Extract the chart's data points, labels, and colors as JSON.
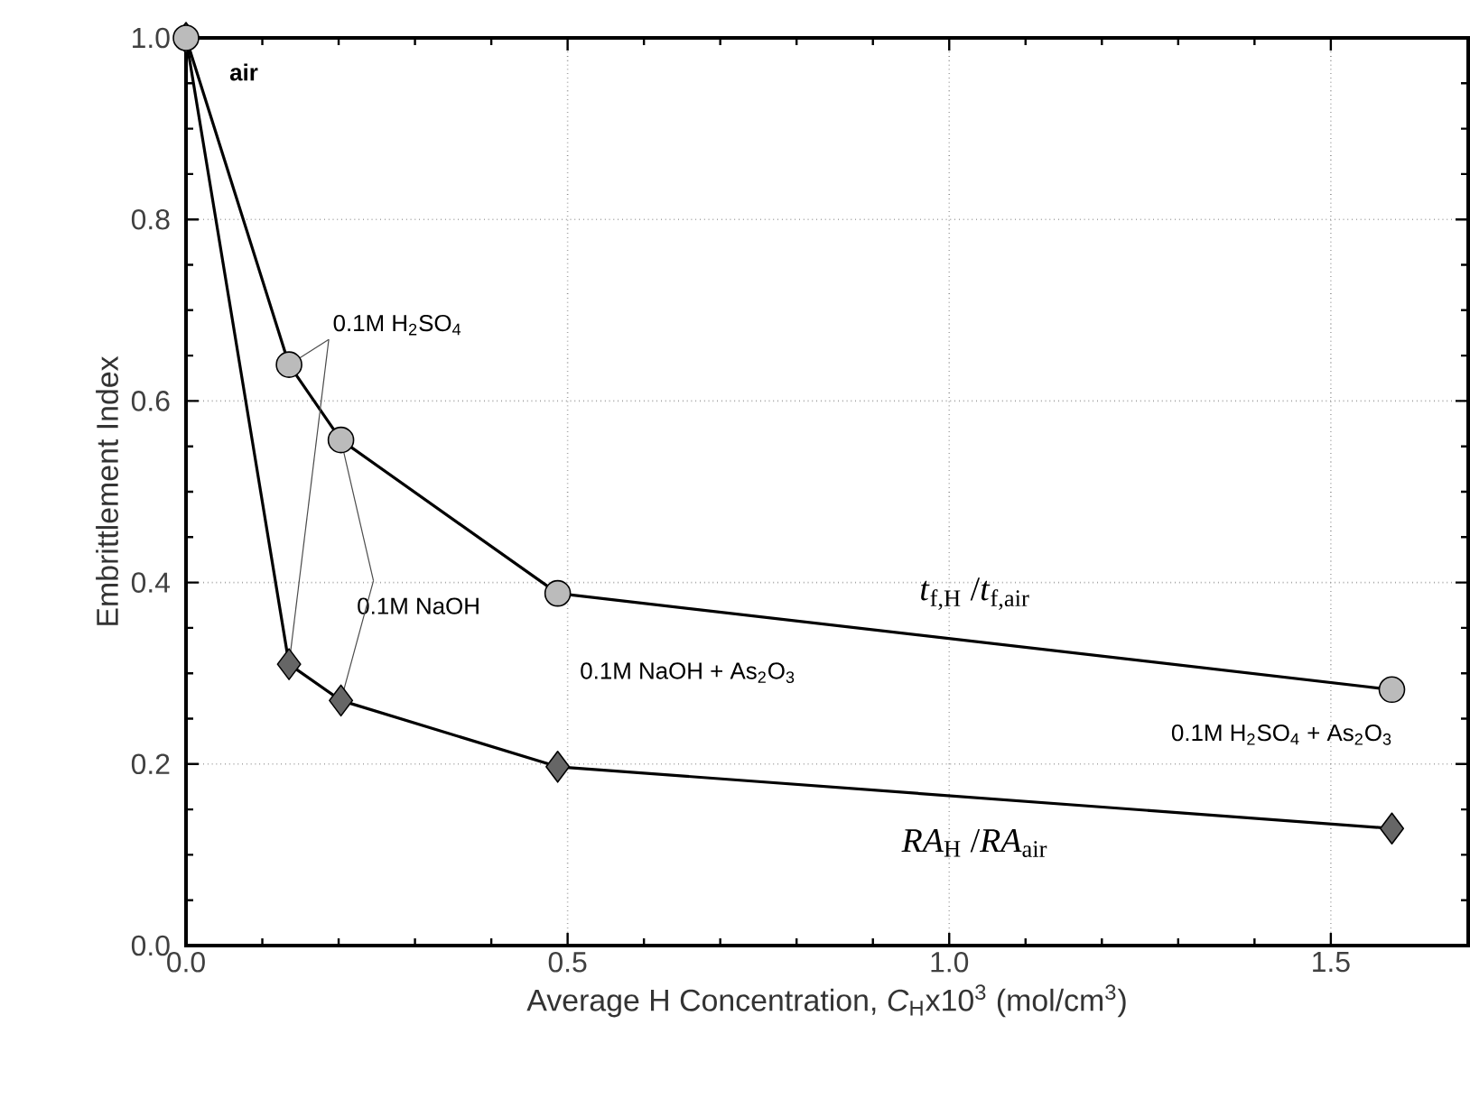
{
  "chart_data": {
    "type": "line",
    "xlabel": "Average H Concentration, *C*$_{H}$x10$^{3}$  (mol/cm$^{3}$)",
    "ylabel": "Embrittlement Index",
    "x": [
      0,
      0.135,
      0.203,
      0.487,
      1.58
    ],
    "series": [
      {
        "name": "*t*$_{f,H}$ /*t*$_{f,air}$",
        "color": "#bbbbbb",
        "marker": "circle",
        "values": [
          1.0,
          0.64,
          0.557,
          0.388,
          0.282
        ]
      },
      {
        "name": "*RA*$_{H}$ /*RA*$_{air}$",
        "color": "#666666",
        "marker": "diamond",
        "values": [
          1.0,
          0.31,
          0.27,
          0.197,
          0.129
        ]
      }
    ],
    "xlim": [
      0,
      1.68
    ],
    "ylim": [
      0,
      1.0
    ],
    "xticks": [
      {
        "value": 0,
        "label": "0.0"
      },
      {
        "value": 0.5,
        "label": "0.5"
      },
      {
        "value": 1.0,
        "label": "1.0"
      },
      {
        "value": 1.5,
        "label": "1.5"
      }
    ],
    "yticks": [
      {
        "value": 0,
        "label": "0.0"
      },
      {
        "value": 0.2,
        "label": "0.2"
      },
      {
        "value": 0.4,
        "label": "0.4"
      },
      {
        "value": 0.6,
        "label": "0.6"
      },
      {
        "value": 0.8,
        "label": "0.8"
      },
      {
        "value": 1.0,
        "label": "1.0"
      }
    ],
    "grid": true,
    "line_style": "solid",
    "annotations": [
      {
        "text": "air",
        "x": 0,
        "y": 1.0
      },
      {
        "text": "0.1M H$_{2}$SO$_{4}$",
        "x": 0.135,
        "y": 0.64
      },
      {
        "text": "0.1M NaOH",
        "x": 0.203,
        "y": 0.557
      },
      "0.1M NaOH + As$_{2}$O$_{3}$",
      "0.1M H$_{2}$SO$_{4}$ + As$_{2}$O$_{3}$"
    ]
  }
}
